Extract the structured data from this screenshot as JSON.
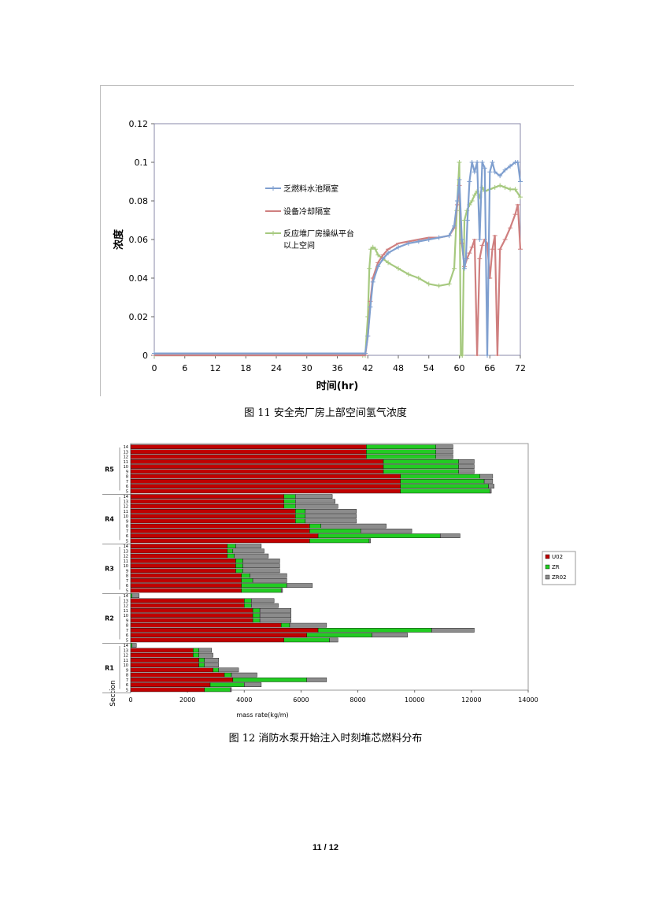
{
  "figure11": {
    "caption": "图 11  安全壳厂房上部空间氢气浓度",
    "chart_data": {
      "type": "line",
      "xlabel": "时间(hr)",
      "ylabel": "浓度",
      "xlim": [
        0,
        72
      ],
      "ylim": [
        0,
        0.12
      ],
      "x_ticks": [
        "0",
        "6",
        "12",
        "18",
        "24",
        "30",
        "36",
        "42",
        "48",
        "54",
        "60",
        "66",
        "72"
      ],
      "y_ticks": [
        "0",
        "0.02",
        "0.04",
        "0.06",
        "0.08",
        "0.1",
        "0.12"
      ],
      "legend_position": "inside-upper-middle",
      "series": [
        {
          "name": "乏燃料水池隔室",
          "color": "#7f9fcf",
          "marker": "+",
          "x": [
            0,
            41.5,
            42,
            42.5,
            43,
            44,
            45,
            46,
            48,
            50,
            52,
            54,
            56,
            58,
            59,
            59.6,
            60,
            60.5,
            61,
            61.3,
            61.6,
            62,
            62.5,
            63,
            63.5,
            64,
            64.5,
            65,
            65.5,
            66,
            66.5,
            67,
            68,
            69,
            70,
            71,
            71.5,
            72
          ],
          "y": [
            0.001,
            0.001,
            0.01,
            0.025,
            0.038,
            0.046,
            0.05,
            0.053,
            0.056,
            0.058,
            0.059,
            0.06,
            0.061,
            0.062,
            0.067,
            0.08,
            0.091,
            0.06,
            0.045,
            0.05,
            0.07,
            0.09,
            0.1,
            0.095,
            0.1,
            0.06,
            0.1,
            0.097,
            0.0,
            0.095,
            0.1,
            0.095,
            0.093,
            0.096,
            0.098,
            0.1,
            0.1,
            0.09
          ]
        },
        {
          "name": "设备冷却隔室",
          "color": "#cf7f7f",
          "marker": "-",
          "x": [
            0,
            41.5,
            42,
            42.5,
            43,
            44,
            45,
            46,
            48,
            50,
            52,
            54,
            56,
            58,
            59,
            59.6,
            60,
            60.5,
            61,
            61.5,
            62,
            62.5,
            63,
            63.5,
            64,
            64.5,
            65,
            65.5,
            66,
            66.5,
            67,
            67.5,
            68,
            69,
            70,
            71,
            71.5,
            72
          ],
          "y": [
            0,
            0,
            0.01,
            0.028,
            0.04,
            0.048,
            0.052,
            0.055,
            0.058,
            0.059,
            0.06,
            0.061,
            0.061,
            0.062,
            0.066,
            0.078,
            0.088,
            0.058,
            0.046,
            0.05,
            0.053,
            0.056,
            0.06,
            0.0,
            0.05,
            0.057,
            0.06,
            0.058,
            0.04,
            0.055,
            0.062,
            0.0,
            0.055,
            0.06,
            0.066,
            0.073,
            0.078,
            0.055
          ]
        },
        {
          "name": "反应堆厂房操纵平台以上空间",
          "legend_lines": [
            "反应堆厂房操纵平台",
            "以上空间"
          ],
          "color": "#a6c97f",
          "marker": "+",
          "x": [
            0,
            41,
            41.5,
            42,
            42.3,
            42.6,
            43,
            43.5,
            44,
            46,
            48,
            50,
            52,
            54,
            56,
            58,
            59,
            59.5,
            60,
            60.3,
            60.6,
            61,
            61.5,
            62,
            62.5,
            63,
            63.5,
            64,
            64.5,
            65,
            66,
            67,
            68,
            69,
            70,
            71,
            72
          ],
          "y": [
            0,
            0,
            0,
            0.02,
            0.045,
            0.055,
            0.056,
            0.055,
            0.052,
            0.048,
            0.045,
            0.042,
            0.04,
            0.037,
            0.036,
            0.037,
            0.045,
            0.075,
            0.1,
            0.0,
            0.0,
            0.07,
            0.075,
            0.078,
            0.08,
            0.083,
            0.085,
            0.082,
            0.087,
            0.085,
            0.086,
            0.087,
            0.088,
            0.087,
            0.086,
            0.086,
            0.082
          ]
        }
      ]
    }
  },
  "figure12": {
    "caption": "图 12  消防水泵开始注入时刻堆芯燃料分布",
    "chart_data": {
      "type": "bar",
      "orientation": "horizontal-stacked",
      "xlabel": "mass rate(kg/m)",
      "ylabel": "Section",
      "xlim": [
        0,
        14000
      ],
      "x_ticks": [
        "0",
        "2000",
        "4000",
        "6000",
        "8000",
        "10000",
        "12000",
        "14000"
      ],
      "legend_position": "right",
      "series_names": [
        "U02",
        "ZR",
        "ZR02"
      ],
      "colors": [
        "#c00000",
        "#22cc22",
        "#8c8c8c"
      ],
      "groups": [
        {
          "name": "R5",
          "rows": [
            {
              "label": "14",
              "values": [
                8300,
                2450,
                600
              ]
            },
            {
              "label": "13",
              "values": [
                8300,
                2450,
                600
              ]
            },
            {
              "label": "12",
              "values": [
                8300,
                2450,
                600
              ]
            },
            {
              "label": "11",
              "values": [
                8900,
                2650,
                550
              ]
            },
            {
              "label": "10",
              "values": [
                8900,
                2650,
                550
              ]
            },
            {
              "label": "9",
              "values": [
                8900,
                2650,
                550
              ]
            },
            {
              "label": "8",
              "values": [
                9500,
                2800,
                450
              ]
            },
            {
              "label": "7",
              "values": [
                9500,
                2950,
                300
              ]
            },
            {
              "label": "6",
              "values": [
                9500,
                3100,
                200
              ]
            },
            {
              "label": "5",
              "values": [
                9500,
                3150,
                50
              ]
            }
          ]
        },
        {
          "name": "R4",
          "rows": [
            {
              "label": "14",
              "values": [
                5400,
                400,
                1300
              ]
            },
            {
              "label": "13",
              "values": [
                5400,
                400,
                1400
              ]
            },
            {
              "label": "12",
              "values": [
                5400,
                400,
                1500
              ]
            },
            {
              "label": "11",
              "values": [
                5800,
                350,
                1800
              ]
            },
            {
              "label": "10",
              "values": [
                5800,
                350,
                1800
              ]
            },
            {
              "label": "9",
              "values": [
                5800,
                350,
                1800
              ]
            },
            {
              "label": "8",
              "values": [
                6300,
                400,
                2300
              ]
            },
            {
              "label": "7",
              "values": [
                6300,
                1800,
                1800
              ]
            },
            {
              "label": "6",
              "values": [
                6600,
                4300,
                700
              ]
            },
            {
              "label": "5",
              "values": [
                6300,
                2100,
                50
              ]
            }
          ]
        },
        {
          "name": "R3",
          "rows": [
            {
              "label": "14",
              "values": [
                3400,
                300,
                900
              ]
            },
            {
              "label": "13",
              "values": [
                3400,
                200,
                1100
              ]
            },
            {
              "label": "12",
              "values": [
                3400,
                250,
                1200
              ]
            },
            {
              "label": "11",
              "values": [
                3700,
                250,
                1300
              ]
            },
            {
              "label": "10",
              "values": [
                3700,
                250,
                1300
              ]
            },
            {
              "label": "9",
              "values": [
                3700,
                250,
                1300
              ]
            },
            {
              "label": "8",
              "values": [
                3900,
                300,
                1300
              ]
            },
            {
              "label": "7",
              "values": [
                3900,
                400,
                1200
              ]
            },
            {
              "label": "6",
              "values": [
                3900,
                1600,
                900
              ]
            },
            {
              "label": "5",
              "values": [
                3900,
                1400,
                50
              ]
            }
          ]
        },
        {
          "name": "R2",
          "rows": [
            {
              "label": "14",
              "values": [
                0,
                50,
                250
              ]
            },
            {
              "label": "13",
              "values": [
                4000,
                250,
                800
              ]
            },
            {
              "label": "12",
              "values": [
                4000,
                250,
                950
              ]
            },
            {
              "label": "11",
              "values": [
                4300,
                250,
                1100
              ]
            },
            {
              "label": "10",
              "values": [
                4300,
                250,
                1100
              ]
            },
            {
              "label": "9",
              "values": [
                4300,
                250,
                1100
              ]
            },
            {
              "label": "8",
              "values": [
                5300,
                300,
                1300
              ]
            },
            {
              "label": "7",
              "values": [
                6600,
                4000,
                1500
              ]
            },
            {
              "label": "6",
              "values": [
                6200,
                2300,
                1250
              ]
            },
            {
              "label": "5",
              "values": [
                5400,
                1600,
                300
              ]
            }
          ]
        },
        {
          "name": "R1",
          "rows": [
            {
              "label": "14",
              "values": [
                0,
                50,
                150
              ]
            },
            {
              "label": "13",
              "values": [
                2200,
                200,
                450
              ]
            },
            {
              "label": "12",
              "values": [
                2200,
                200,
                500
              ]
            },
            {
              "label": "11",
              "values": [
                2400,
                200,
                500
              ]
            },
            {
              "label": "10",
              "values": [
                2400,
                200,
                500
              ]
            },
            {
              "label": "9",
              "values": [
                2900,
                200,
                700
              ]
            },
            {
              "label": "8",
              "values": [
                3300,
                250,
                900
              ]
            },
            {
              "label": "7",
              "values": [
                3600,
                2600,
                700
              ]
            },
            {
              "label": "6",
              "values": [
                2800,
                1200,
                600
              ]
            },
            {
              "label": "5",
              "values": [
                2600,
                900,
                50
              ]
            }
          ]
        }
      ]
    }
  },
  "page_number": "11 / 12"
}
